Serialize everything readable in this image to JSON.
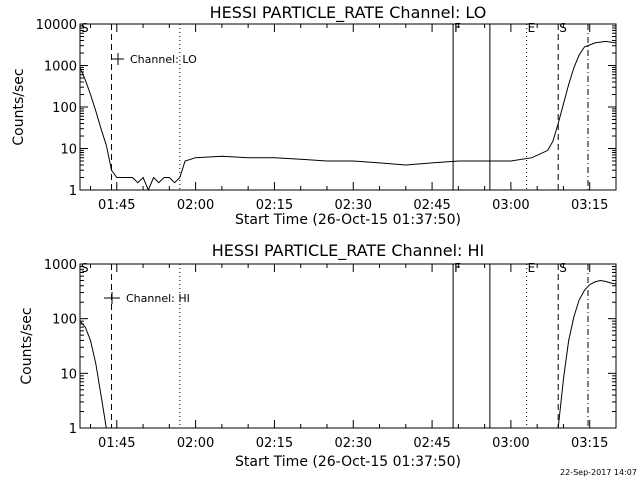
{
  "timestamp": "22-Sep-2017 14:07",
  "chart_data": [
    {
      "type": "line",
      "title": "HESSI PARTICLE_RATE Channel: LO",
      "xlabel": "Start Time (26-Oct-15 01:37:50)",
      "ylabel": "Counts/sec",
      "yscale": "log",
      "xlim": [
        "01:38",
        "03:20"
      ],
      "ylim": [
        1,
        10000
      ],
      "x_ticks": [
        "01:45",
        "02:00",
        "02:15",
        "02:30",
        "02:45",
        "03:00",
        "03:15"
      ],
      "y_ticks": [
        "1",
        "10",
        "100",
        "1000",
        "10000"
      ],
      "legend": "Channel: LO",
      "event_markers": [
        {
          "label": "S",
          "time": "01:38",
          "style": "dashed"
        },
        {
          "label": "",
          "time": "01:44",
          "style": "dashed"
        },
        {
          "label": "",
          "time": "01:57",
          "style": "dotted"
        },
        {
          "label": "F",
          "time": "02:49",
          "style": "solid"
        },
        {
          "label": "",
          "time": "02:56",
          "style": "solid"
        },
        {
          "label": "E",
          "time": "03:03",
          "style": "dotted"
        },
        {
          "label": "S",
          "time": "03:09",
          "style": "dashed"
        },
        {
          "label": "",
          "time": "03:22",
          "style": "dashdot"
        }
      ],
      "series": [
        {
          "x": [
            "01:38",
            "01:39",
            "01:40",
            "01:41",
            "01:42",
            "01:43",
            "01:44",
            "01:45",
            "01:46",
            "01:47",
            "01:48",
            "01:49",
            "01:50",
            "01:51",
            "01:52",
            "01:53",
            "01:54",
            "01:55",
            "01:56",
            "01:57",
            "01:58",
            "02:00",
            "02:05",
            "02:10",
            "02:15",
            "02:20",
            "02:25",
            "02:30",
            "02:35",
            "02:40",
            "02:45",
            "02:50",
            "02:55",
            "03:00",
            "03:04",
            "03:07",
            "03:08",
            "03:09",
            "03:10",
            "03:11",
            "03:12",
            "03:13",
            "03:14",
            "03:16",
            "03:18",
            "03:20",
            "03:22"
          ],
          "values": [
            900,
            450,
            200,
            80,
            30,
            12,
            3,
            2,
            2,
            2,
            2,
            1.5,
            2,
            1,
            2,
            1.5,
            2,
            2,
            1.5,
            2,
            5,
            6,
            6.5,
            6,
            6,
            5.5,
            5,
            5,
            4.5,
            4,
            4.5,
            5,
            5,
            5,
            6,
            9,
            15,
            40,
            120,
            350,
            900,
            1800,
            2800,
            3500,
            3800,
            3500,
            3000
          ]
        }
      ]
    },
    {
      "type": "line",
      "title": "HESSI PARTICLE_RATE Channel: HI",
      "xlabel": "Start Time (26-Oct-15 01:37:50)",
      "ylabel": "Counts/sec",
      "yscale": "log",
      "xlim": [
        "01:38",
        "03:20"
      ],
      "ylim": [
        1,
        1000
      ],
      "x_ticks": [
        "01:45",
        "02:00",
        "02:15",
        "02:30",
        "02:45",
        "03:00",
        "03:15"
      ],
      "y_ticks": [
        "1",
        "10",
        "100",
        "1000"
      ],
      "legend": "Channel: HI",
      "event_markers": [
        {
          "label": "S",
          "time": "01:38",
          "style": "dashed"
        },
        {
          "label": "",
          "time": "01:44",
          "style": "dashed"
        },
        {
          "label": "",
          "time": "01:57",
          "style": "dotted"
        },
        {
          "label": "F",
          "time": "02:49",
          "style": "solid"
        },
        {
          "label": "",
          "time": "02:56",
          "style": "solid"
        },
        {
          "label": "E",
          "time": "03:03",
          "style": "dotted"
        },
        {
          "label": "S",
          "time": "03:09",
          "style": "dashed"
        },
        {
          "label": "",
          "time": "03:22",
          "style": "dashdot"
        }
      ],
      "series": [
        {
          "x": [
            "01:38",
            "01:39",
            "01:40",
            "01:41",
            "01:42",
            "01:43",
            "01:44",
            "03:09",
            "03:10",
            "03:11",
            "03:12",
            "03:13",
            "03:14",
            "03:15",
            "03:16",
            "03:17",
            "03:18",
            "03:19",
            "03:20",
            "03:21",
            "03:22"
          ],
          "values": [
            90,
            70,
            40,
            15,
            4,
            1,
            null,
            1,
            8,
            40,
            110,
            220,
            330,
            420,
            470,
            500,
            480,
            450,
            430,
            420,
            380
          ]
        }
      ]
    }
  ]
}
